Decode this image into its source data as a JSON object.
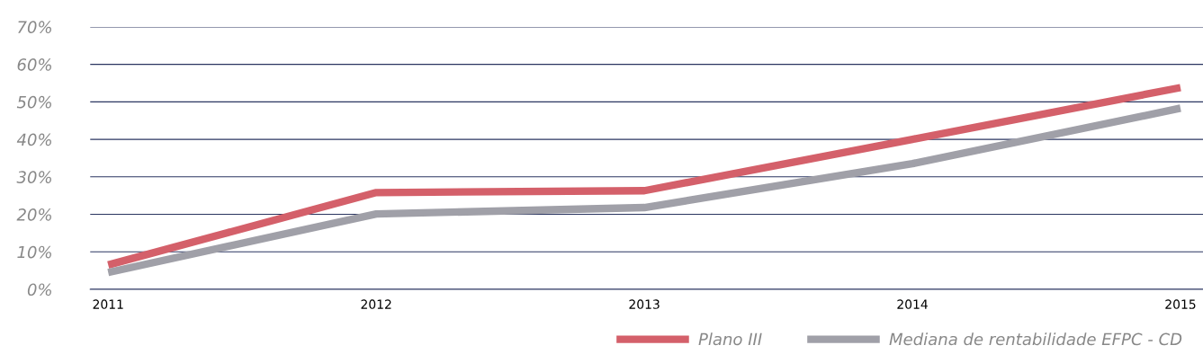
{
  "chart_data": {
    "type": "line",
    "categories": [
      "2011",
      "2012",
      "2013",
      "2014",
      "2015"
    ],
    "series": [
      {
        "name": "Plano III",
        "color": "#d4606a",
        "values": [
          6.5,
          25.8,
          26.3,
          40,
          53.8
        ]
      },
      {
        "name": "Mediana de rentabilidade EFPC - CD",
        "color": "#a0a0a8",
        "values": [
          4.5,
          20.1,
          21.8,
          33.5,
          48.3
        ]
      }
    ],
    "ylim": [
      0,
      70
    ],
    "yticks": [
      {
        "value": 0,
        "label": "0%"
      },
      {
        "value": 10,
        "label": "10%"
      },
      {
        "value": 20,
        "label": "20%"
      },
      {
        "value": 30,
        "label": "30%"
      },
      {
        "value": 40,
        "label": "40%"
      },
      {
        "value": 50,
        "label": "50%"
      },
      {
        "value": 60,
        "label": "60%"
      },
      {
        "value": 70,
        "label": "70%"
      }
    ],
    "grid": "y",
    "legend": "bottom right",
    "marker": "none",
    "line_style": "solid"
  }
}
